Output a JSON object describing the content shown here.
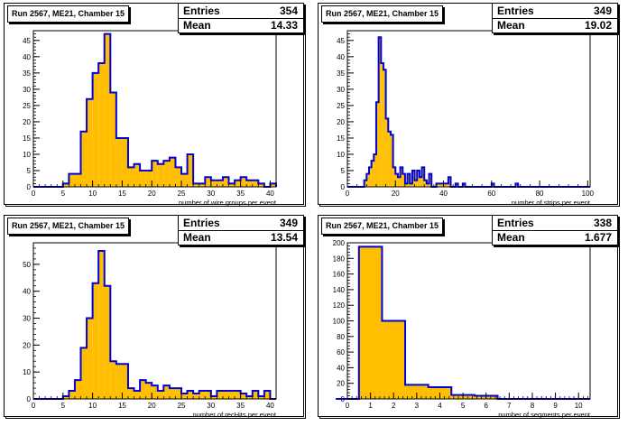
{
  "colors": {
    "fill": "#ffbf00",
    "line": "#0000d8",
    "axis": "#000000"
  },
  "panels": [
    {
      "title": "Run 2567, ME21, Chamber 15",
      "entries_label": "Entries",
      "entries": "354",
      "mean_label": "Mean",
      "mean": "14.33"
    },
    {
      "title": "Run 2567, ME21, Chamber 15",
      "entries_label": "Entries",
      "entries": "349",
      "mean_label": "Mean",
      "mean": "19.02"
    },
    {
      "title": "Run 2567, ME21, Chamber 15",
      "entries_label": "Entries",
      "entries": "349",
      "mean_label": "Mean",
      "mean": "13.54"
    },
    {
      "title": "Run 2567, ME21, Chamber 15",
      "entries_label": "Entries",
      "entries": "338",
      "mean_label": "Mean",
      "mean": "1.677"
    }
  ],
  "chart_data": [
    {
      "type": "bar",
      "title": "Run 2567, ME21, Chamber 15",
      "xlabel": "number of wire groups per event",
      "ylabel": "",
      "xlim": [
        0,
        41
      ],
      "ylim": [
        0,
        48
      ],
      "xticks": [
        0,
        5,
        10,
        15,
        20,
        25,
        30,
        35,
        40
      ],
      "yticks": [
        0,
        5,
        10,
        15,
        20,
        25,
        30,
        35,
        40,
        45
      ],
      "bin_edges": [
        0,
        1,
        2,
        3,
        4,
        5,
        6,
        7,
        8,
        9,
        10,
        11,
        12,
        13,
        14,
        15,
        16,
        17,
        18,
        19,
        20,
        21,
        22,
        23,
        24,
        25,
        26,
        27,
        28,
        29,
        30,
        31,
        32,
        33,
        34,
        35,
        36,
        37,
        38,
        39,
        40,
        41
      ],
      "values": [
        0,
        0,
        0,
        0,
        0,
        1,
        4,
        4,
        17,
        27,
        35,
        38,
        47,
        29,
        15,
        15,
        6,
        7,
        5,
        5,
        8,
        7,
        8,
        9,
        6,
        4,
        10,
        1,
        1,
        3,
        2,
        2,
        3,
        1,
        2,
        3,
        2,
        2,
        1,
        0,
        1
      ]
    },
    {
      "type": "bar",
      "title": "Run 2567, ME21, Chamber 15",
      "xlabel": "number of strips per event",
      "ylabel": "",
      "xlim": [
        0,
        101
      ],
      "ylim": [
        0,
        48
      ],
      "xticks": [
        0,
        20,
        40,
        60,
        80,
        100
      ],
      "yticks": [
        0,
        5,
        10,
        15,
        20,
        25,
        30,
        35,
        40,
        45
      ],
      "bin_edges": [
        0,
        1,
        2,
        3,
        4,
        5,
        6,
        7,
        8,
        9,
        10,
        11,
        12,
        13,
        14,
        15,
        16,
        17,
        18,
        19,
        20,
        21,
        22,
        23,
        24,
        25,
        26,
        27,
        28,
        29,
        30,
        31,
        32,
        33,
        34,
        35,
        36,
        37,
        38,
        39,
        40,
        41,
        42,
        43,
        44,
        45,
        46,
        47,
        48,
        49,
        50,
        51,
        52,
        53,
        54,
        55,
        56,
        57,
        58,
        59,
        60,
        61,
        62,
        63,
        64,
        65,
        66,
        67,
        68,
        69,
        70,
        71,
        72,
        73,
        74,
        75,
        76,
        77,
        78,
        79,
        80,
        81,
        82,
        83,
        84,
        85,
        86,
        87,
        88,
        89,
        90,
        91,
        92,
        93,
        94,
        95,
        96,
        97,
        98,
        99,
        100,
        101
      ],
      "values": [
        0,
        0,
        0,
        0,
        0,
        0,
        0,
        2,
        4,
        6,
        8,
        10,
        26,
        46,
        38,
        36,
        21,
        17,
        16,
        6,
        4,
        3,
        6,
        4,
        1,
        4,
        1,
        5,
        2,
        5,
        3,
        6,
        2,
        1,
        4,
        0,
        0,
        1,
        1,
        1,
        1,
        1,
        3,
        0,
        0,
        1,
        0,
        0,
        1,
        0,
        0,
        0,
        0,
        0,
        0,
        0,
        0,
        0,
        0,
        0,
        1,
        0,
        0,
        0,
        0,
        0,
        0,
        0,
        0,
        0,
        1,
        0,
        0,
        0,
        0,
        0,
        0,
        0,
        0,
        0,
        0,
        0,
        0,
        0,
        0,
        0,
        0,
        0,
        0,
        0,
        0,
        0,
        0,
        0,
        0,
        0,
        0,
        0,
        0,
        0,
        0
      ]
    },
    {
      "type": "bar",
      "title": "Run 2567, ME21, Chamber 15",
      "xlabel": "number of recHits per event",
      "ylabel": "",
      "xlim": [
        0,
        41
      ],
      "ylim": [
        0,
        58
      ],
      "xticks": [
        0,
        5,
        10,
        15,
        20,
        25,
        30,
        35,
        40
      ],
      "yticks": [
        0,
        10,
        20,
        30,
        40,
        50
      ],
      "bin_edges": [
        0,
        1,
        2,
        3,
        4,
        5,
        6,
        7,
        8,
        9,
        10,
        11,
        12,
        13,
        14,
        15,
        16,
        17,
        18,
        19,
        20,
        21,
        22,
        23,
        24,
        25,
        26,
        27,
        28,
        29,
        30,
        31,
        32,
        33,
        34,
        35,
        36,
        37,
        38,
        39,
        40,
        41
      ],
      "values": [
        0,
        0,
        0,
        0,
        0,
        1,
        3,
        7,
        19,
        30,
        43,
        55,
        42,
        14,
        13,
        13,
        4,
        3,
        7,
        6,
        5,
        3,
        5,
        4,
        4,
        2,
        3,
        2,
        3,
        3,
        1,
        3,
        3,
        3,
        3,
        2,
        1,
        3,
        1,
        3,
        0
      ]
    },
    {
      "type": "bar",
      "title": "Run 2567, ME21, Chamber 15",
      "xlabel": "number of segments per event",
      "ylabel": "",
      "xlim": [
        0,
        10.5
      ],
      "ylim": [
        0,
        200
      ],
      "xticks": [
        0,
        1,
        2,
        3,
        4,
        5,
        6,
        7,
        8,
        9,
        10
      ],
      "yticks": [
        0,
        20,
        40,
        60,
        80,
        100,
        120,
        140,
        160,
        180,
        200
      ],
      "bin_edges": [
        -0.5,
        0.5,
        1.5,
        2.5,
        3.5,
        4.5,
        5.5,
        6.5,
        7.5,
        8.5,
        9.5,
        10.5
      ],
      "values": [
        0,
        195,
        100,
        18,
        15,
        5,
        4,
        0,
        0,
        0,
        0
      ]
    }
  ]
}
